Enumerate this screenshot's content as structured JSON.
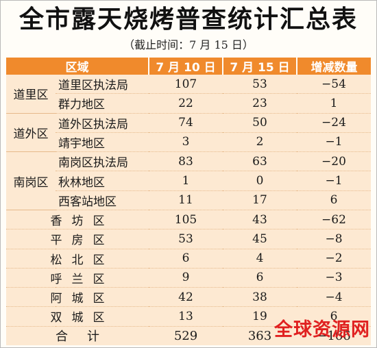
{
  "title": "全市露天烧烤普查统计汇总表",
  "subtitle": "（截止时间：7 月 15 日）",
  "headers": [
    "区域",
    "7 月 10 日",
    "7 月 15 日",
    "增减数量"
  ],
  "groups": [
    {
      "district": "道里区",
      "rows": [
        {
          "name": "道里区执法局",
          "jul10": "107",
          "jul15": "53",
          "change": "−54"
        },
        {
          "name": "群力地区",
          "jul10": "22",
          "jul15": "23",
          "change": "1"
        }
      ]
    },
    {
      "district": "道外区",
      "rows": [
        {
          "name": "道外区执法局",
          "jul10": "74",
          "jul15": "50",
          "change": "−24"
        },
        {
          "name": "靖宇地区",
          "jul10": "3",
          "jul15": "2",
          "change": "−1"
        }
      ]
    },
    {
      "district": "南岗区",
      "rows": [
        {
          "name": "南岗区执法局",
          "jul10": "83",
          "jul15": "63",
          "change": "−20"
        },
        {
          "name": "秋林地区",
          "jul10": "1",
          "jul15": "0",
          "change": "−1"
        },
        {
          "name": "西客站地区",
          "jul10": "11",
          "jul15": "17",
          "change": "6"
        }
      ]
    }
  ],
  "districts": [
    {
      "name": "香坊区",
      "jul10": "105",
      "jul15": "43",
      "change": "−62"
    },
    {
      "name": "平房区",
      "jul10": "53",
      "jul15": "45",
      "change": "−8"
    },
    {
      "name": "松北区",
      "jul10": "6",
      "jul15": "4",
      "change": "−2"
    },
    {
      "name": "呼兰区",
      "jul10": "9",
      "jul15": "6",
      "change": "−3"
    },
    {
      "name": "阿城区",
      "jul10": "42",
      "jul15": "38",
      "change": "−4"
    },
    {
      "name": "双城区",
      "jul10": "13",
      "jul15": "19",
      "change": "6"
    }
  ],
  "total": {
    "label": "合计",
    "jul10": "529",
    "jul15": "363",
    "change": "−166"
  },
  "watermark": "全球资源网"
}
